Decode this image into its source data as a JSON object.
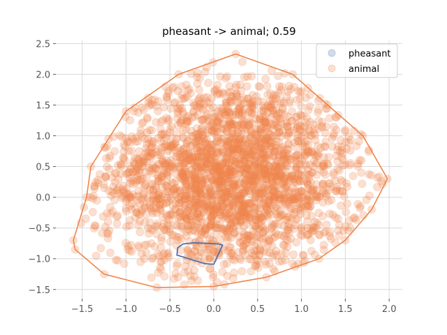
{
  "chart_data": {
    "type": "scatter",
    "title": "pheasant -> animal; 0.59",
    "xlabel": "",
    "ylabel": "",
    "xlim": [
      -1.8,
      2.15
    ],
    "ylim": [
      -1.65,
      2.55
    ],
    "xticks": [
      -1.5,
      -1.0,
      -0.5,
      0.0,
      0.5,
      1.0,
      1.5,
      2.0
    ],
    "xtick_labels": [
      "−1.5",
      "−1.0",
      "−0.5",
      "0.0",
      "0.5",
      "1.0",
      "1.5",
      "2.0"
    ],
    "yticks": [
      -1.5,
      -1.0,
      -0.5,
      0.0,
      0.5,
      1.0,
      1.5,
      2.0,
      2.5
    ],
    "ytick_labels": [
      "−1.5",
      "−1.0",
      "−0.5",
      "0.0",
      "0.5",
      "1.0",
      "1.5",
      "2.0",
      "2.5"
    ],
    "grid": true,
    "legend_position": "top-right",
    "series": [
      {
        "name": "pheasant",
        "color": "#4c72b0",
        "hull": [
          [
            -0.42,
            -0.94
          ],
          [
            -0.41,
            -0.82
          ],
          [
            -0.35,
            -0.76
          ],
          [
            -0.22,
            -0.74
          ],
          [
            0.06,
            -0.76
          ],
          [
            0.1,
            -0.78
          ],
          [
            0.0,
            -1.09
          ],
          [
            -0.1,
            -1.08
          ]
        ],
        "points": [
          [
            -0.3,
            -0.85
          ],
          [
            -0.15,
            -0.9
          ],
          [
            0.0,
            -0.88
          ],
          [
            -0.2,
            -0.8
          ],
          [
            -0.05,
            -1.0
          ]
        ]
      },
      {
        "name": "animal",
        "color": "#ee854a",
        "hull": [
          [
            -1.58,
            -0.85
          ],
          [
            -1.6,
            -0.7
          ],
          [
            -1.45,
            0.0
          ],
          [
            -1.4,
            0.5
          ],
          [
            -1.2,
            0.95
          ],
          [
            -1.0,
            1.4
          ],
          [
            -0.4,
            2.0
          ],
          [
            0.25,
            2.33
          ],
          [
            0.9,
            2.0
          ],
          [
            1.3,
            1.5
          ],
          [
            1.7,
            1.0
          ],
          [
            1.98,
            0.3
          ],
          [
            1.8,
            -0.2
          ],
          [
            1.5,
            -0.7
          ],
          [
            1.2,
            -1.0
          ],
          [
            0.6,
            -1.3
          ],
          [
            0.0,
            -1.45
          ],
          [
            -0.65,
            -1.47
          ],
          [
            -1.25,
            -1.25
          ]
        ],
        "n_points": 2600,
        "point_alpha": 0.25
      }
    ]
  }
}
